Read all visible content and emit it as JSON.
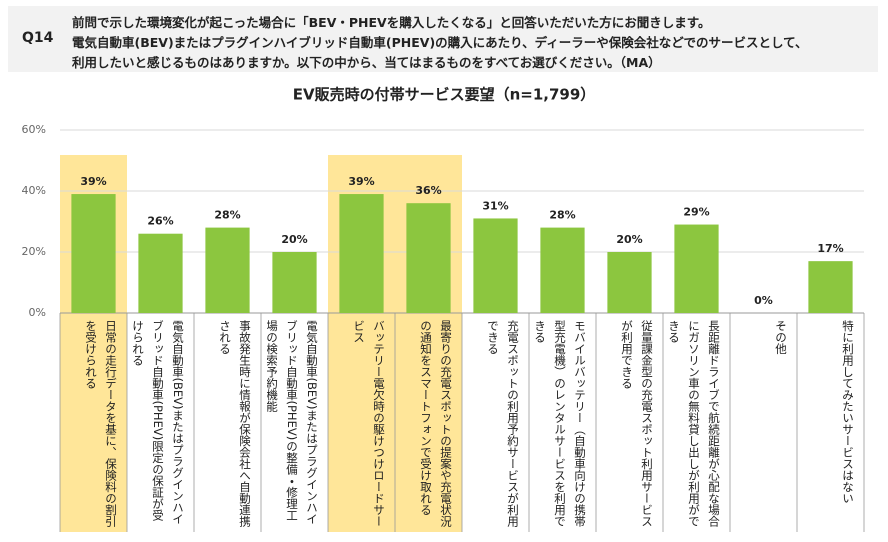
{
  "header": {
    "question_id": "Q14",
    "lines": [
      "前問で示した環境変化が起こった場合に「BEV・PHEVを購入したくなる」と回答いただいた方にお聞きします。",
      "電気自動車(BEV)またはプラグインハイブリッド自動車(PHEV)の購入にあたり、ディーラーや保険会社などでのサービスとして、",
      "利用したいと感じるものはありますか。以下の中から、当てはまるものをすべてお選びください。（MA）"
    ]
  },
  "chart_data": {
    "type": "bar",
    "title": "EV販売時の付帯サービス要望（n=1,799）",
    "categories": [
      "日常の走行データを基に、保険料の割引を受けられる",
      "電気自動車(BEV)またはプラグインハイブリッド自動車(PHEV)限定の保証が受けられる",
      "事故発生時に情報が保険会社へ自動連携される",
      "電気自動車(BEV)またはプラグインハイブリッド自動車(PHEV)の整備・修理工場の検索予約機能",
      "バッテリー電欠時の駆けつけロードサービス",
      "最寄りの充電スポットの提案や充電状況の通知をスマートフォンで受け取れる",
      "充電スポットの利用予約サービスが利用できる",
      "モバイルバッテリー（自動車向けの携帯型充電機）のレンタルサービスを利用できる",
      "従量課金型の充電スポット利用サービスが利用できる",
      "長距離ドライブで航続距離が心配な場合にガソリン車の無料貸し出しが利用ができる",
      "その他",
      "特に利用してみたいサービスはない"
    ],
    "values": [
      39,
      26,
      28,
      20,
      39,
      36,
      31,
      28,
      20,
      29,
      0,
      17
    ],
    "value_labels": [
      "39%",
      "26%",
      "28%",
      "20%",
      "39%",
      "36%",
      "31%",
      "28%",
      "20%",
      "29%",
      "0%",
      "17%"
    ],
    "color": "#8cc63f",
    "highlighted": [
      0,
      4,
      5
    ],
    "highlight_color": "#ffe699",
    "ylim": [
      0,
      60
    ],
    "yticks": [
      {
        "value": 0,
        "label": "0%"
      },
      {
        "value": 20,
        "label": "20%"
      },
      {
        "value": 40,
        "label": "40%"
      },
      {
        "value": 60,
        "label": "60%"
      }
    ],
    "grid": true
  }
}
